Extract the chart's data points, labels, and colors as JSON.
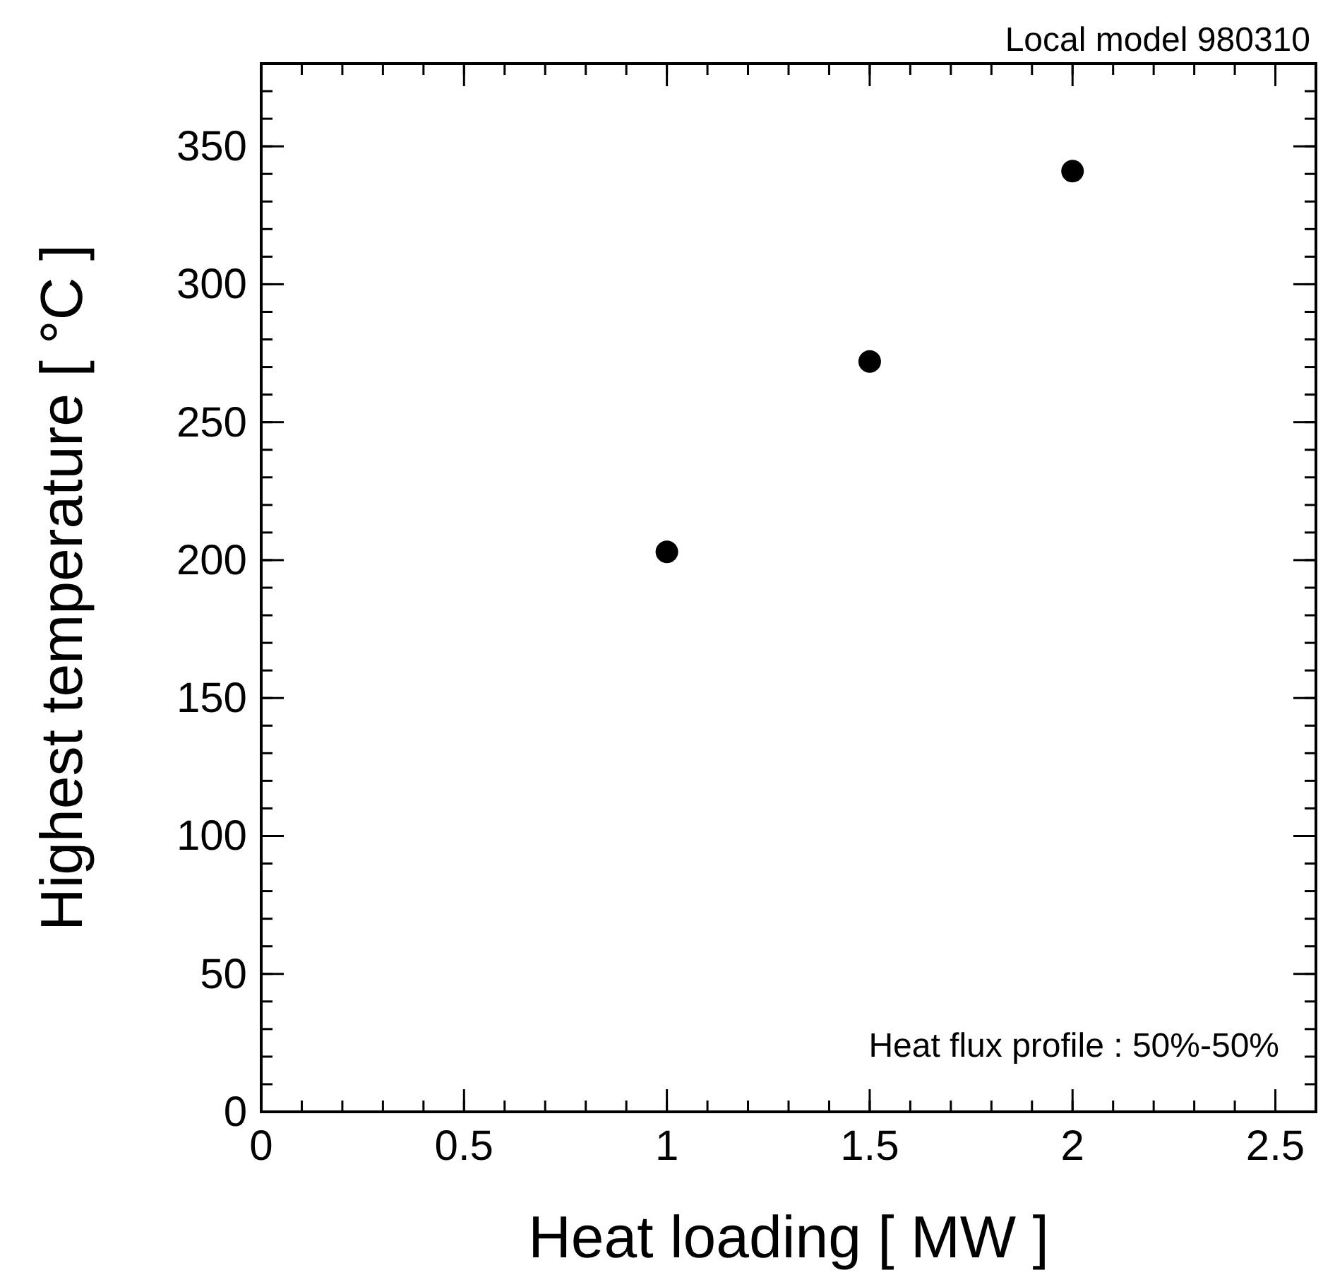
{
  "chart_data": {
    "type": "scatter",
    "xlabel": "Heat loading [ MW ]",
    "ylabel": "Highest temperature [ °C ]",
    "x": [
      1,
      1.5,
      2
    ],
    "values": [
      203,
      272,
      341
    ],
    "color": "#000000",
    "marker": "circle",
    "xlim": [
      0,
      2.6
    ],
    "xticks": [
      0,
      0.5,
      1,
      1.5,
      2,
      2.5
    ],
    "ylim": [
      0,
      380
    ],
    "yticks": [
      0,
      50,
      100,
      150,
      200,
      250,
      300,
      350
    ],
    "annotations": [
      "Local model 980310",
      "Heat flux profile : 50%-50%"
    ]
  }
}
